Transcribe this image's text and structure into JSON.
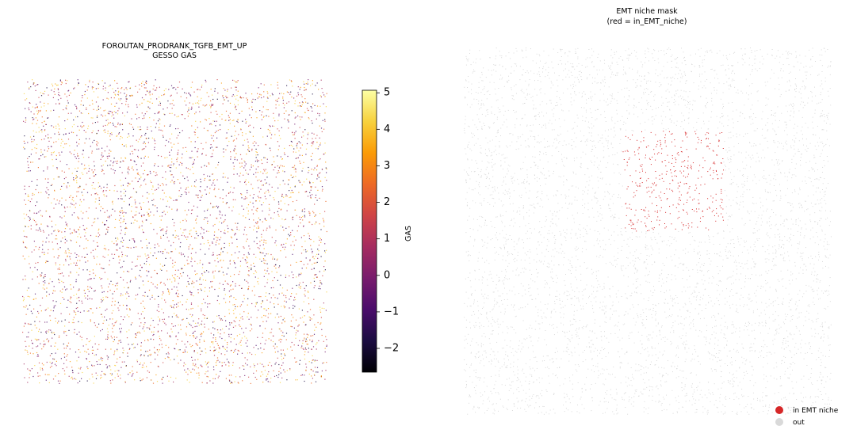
{
  "chart_data": [
    {
      "type": "scatter",
      "title": "FOROUTAN_PRODRANK_TGFB_EMT_UP",
      "subtitle": "GESSO GAS",
      "colorbar": {
        "label": "GAS",
        "colormap": "inferno",
        "lim": [
          -2.65,
          5.07
        ],
        "ticks": [
          {
            "value": -2,
            "label": "−2"
          },
          {
            "value": -1,
            "label": "−1"
          },
          0,
          1,
          2,
          3,
          4,
          5
        ]
      }
    },
    {
      "type": "scatter",
      "title": "EMT niche mask",
      "subtitle": "(red = in_EMT_niche)",
      "legend": "lower right",
      "series": [
        {
          "name": "in EMT niche",
          "color": "#d62728"
        },
        {
          "name": "out",
          "color": "#d9d9d9"
        }
      ]
    }
  ]
}
